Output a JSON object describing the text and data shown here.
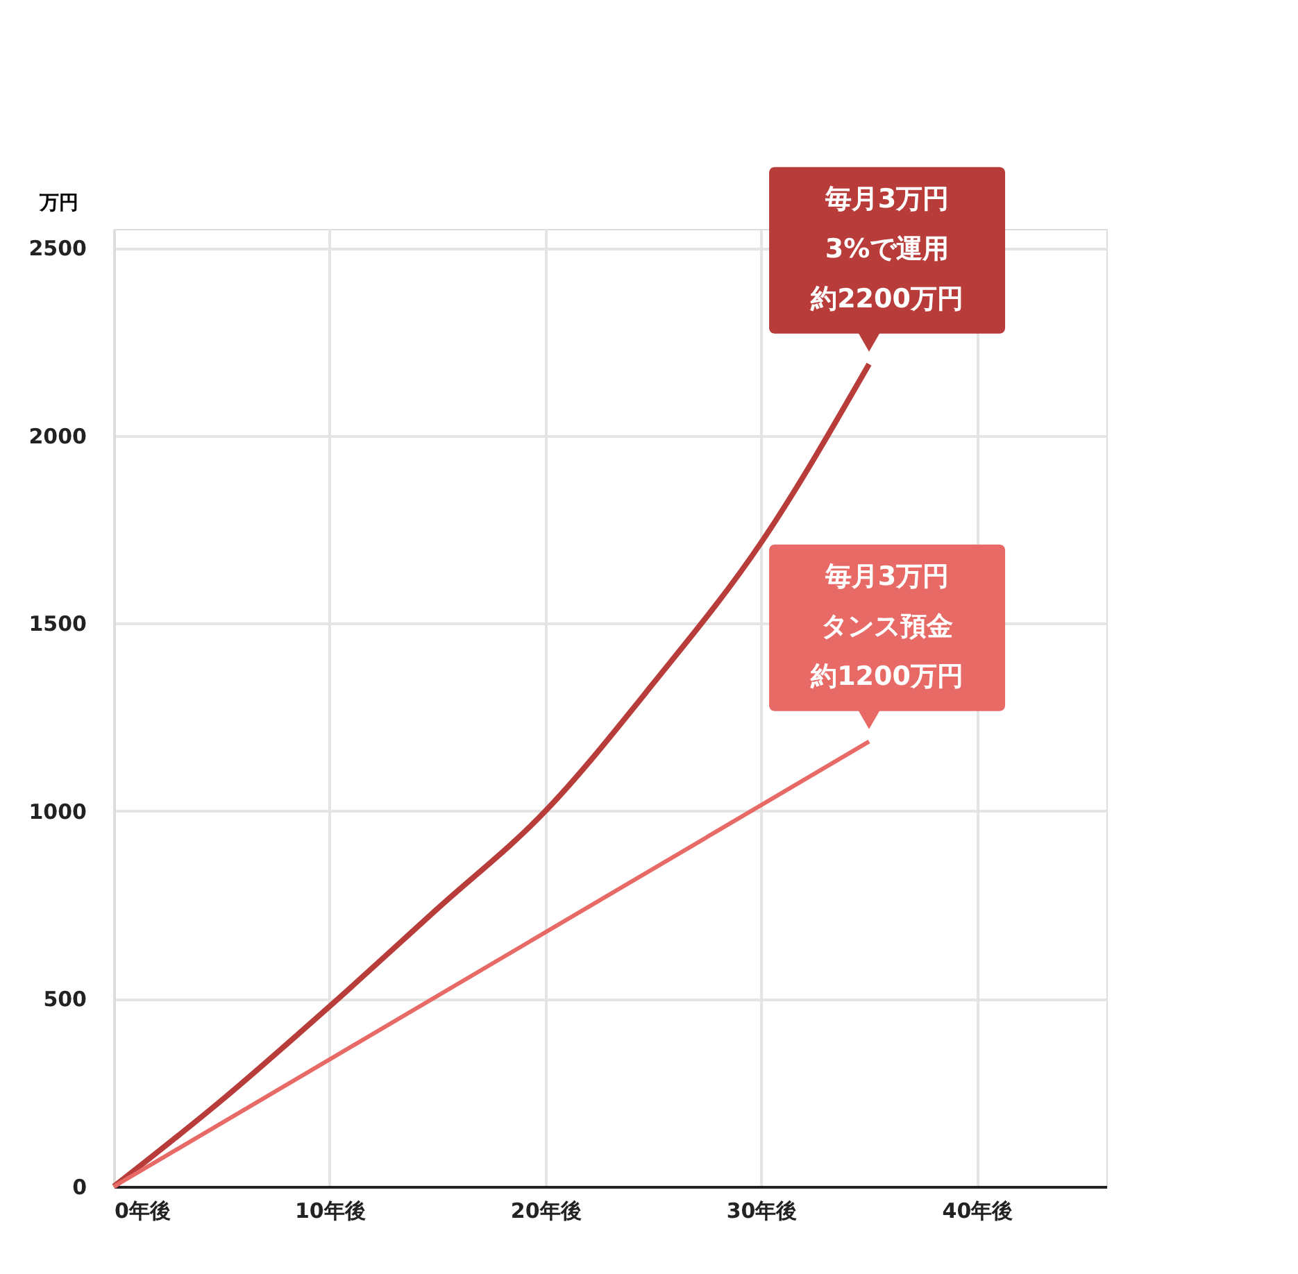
{
  "chart_data": {
    "type": "line",
    "ylabel": "万円",
    "xlim": [
      0,
      46
    ],
    "xticks": [
      {
        "value": 0,
        "label": "0年後"
      },
      {
        "value": 10,
        "label": "10年後"
      },
      {
        "value": 20,
        "label": "20年後"
      },
      {
        "value": 30,
        "label": "30年後"
      },
      {
        "value": 40,
        "label": "40年後"
      }
    ],
    "ylim": [
      0,
      2550
    ],
    "yticks": [
      0,
      500,
      1000,
      1500,
      2000,
      2500
    ],
    "grid": true,
    "marker": "none",
    "line_style": "solid",
    "series": [
      {
        "color": "#b83c3a",
        "x": [
          0,
          5,
          10,
          15,
          20,
          25,
          30,
          35
        ],
        "values": [
          0,
          230,
          480,
          740,
          1000,
          1340,
          1715,
          2190
        ]
      },
      {
        "color": "#e86a66",
        "x": [
          0,
          35
        ],
        "values": [
          0,
          1185
        ]
      }
    ],
    "annotations": [
      "毎月3万円",
      "3%で運用",
      {
        "text": "約2200万円",
        "x": 35,
        "y": 2190
      },
      "毎月3万円",
      "タンス預金",
      {
        "text": "約1200万円",
        "x": 35,
        "y": 1185
      }
    ]
  }
}
